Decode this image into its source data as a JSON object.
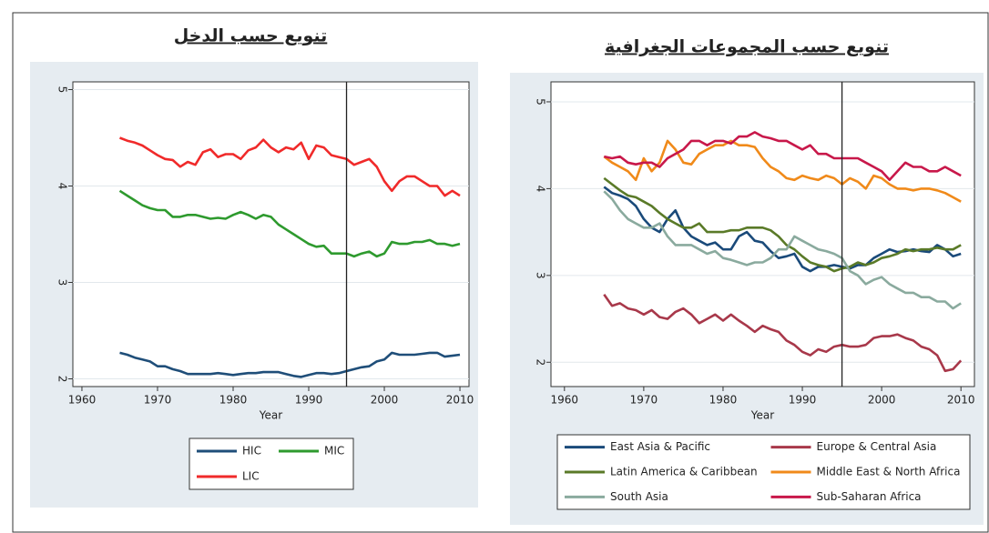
{
  "chart_data": [
    {
      "type": "line",
      "title": "تنويع حسب الدخل",
      "xlabel": "Year",
      "x": [
        1965,
        1966,
        1967,
        1968,
        1969,
        1970,
        1971,
        1972,
        1973,
        1974,
        1975,
        1976,
        1977,
        1978,
        1979,
        1980,
        1981,
        1982,
        1983,
        1984,
        1985,
        1986,
        1987,
        1988,
        1989,
        1990,
        1991,
        1992,
        1993,
        1994,
        1995,
        1996,
        1997,
        1998,
        1999,
        2000,
        2001,
        2002,
        2003,
        2004,
        2005,
        2006,
        2007,
        2008,
        2009,
        2010
      ],
      "xlim": [
        1958.8,
        2011.2
      ],
      "xticks": [
        1960,
        1970,
        1980,
        1990,
        2000,
        2010
      ],
      "ylim": [
        1.92,
        5.08
      ],
      "yticks": [
        2,
        3,
        4,
        5
      ],
      "grid": true,
      "vline": 1995,
      "legend": "bottom",
      "legend_columns": 2,
      "series": [
        {
          "name": "HIC",
          "color": "#1f4e79",
          "values": [
            2.27,
            2.25,
            2.22,
            2.2,
            2.18,
            2.13,
            2.13,
            2.1,
            2.08,
            2.05,
            2.05,
            2.05,
            2.05,
            2.06,
            2.05,
            2.04,
            2.05,
            2.06,
            2.06,
            2.07,
            2.07,
            2.07,
            2.05,
            2.03,
            2.02,
            2.04,
            2.06,
            2.06,
            2.05,
            2.06,
            2.08,
            2.1,
            2.12,
            2.13,
            2.18,
            2.2,
            2.27,
            2.25,
            2.25,
            2.25,
            2.26,
            2.27,
            2.27,
            2.23,
            2.24,
            2.25
          ]
        },
        {
          "name": "MIC",
          "color": "#2e9a2e",
          "values": [
            3.95,
            3.9,
            3.85,
            3.8,
            3.77,
            3.75,
            3.75,
            3.68,
            3.68,
            3.7,
            3.7,
            3.68,
            3.66,
            3.67,
            3.66,
            3.7,
            3.73,
            3.7,
            3.66,
            3.7,
            3.68,
            3.6,
            3.55,
            3.5,
            3.45,
            3.4,
            3.37,
            3.38,
            3.3,
            3.3,
            3.3,
            3.27,
            3.3,
            3.32,
            3.27,
            3.3,
            3.42,
            3.4,
            3.4,
            3.42,
            3.42,
            3.44,
            3.4,
            3.4,
            3.38,
            3.4
          ]
        },
        {
          "name": "LIC",
          "color": "#f02a2a",
          "values": [
            4.5,
            4.47,
            4.45,
            4.42,
            4.37,
            4.32,
            4.28,
            4.27,
            4.2,
            4.25,
            4.22,
            4.35,
            4.38,
            4.3,
            4.33,
            4.33,
            4.28,
            4.37,
            4.4,
            4.48,
            4.4,
            4.35,
            4.4,
            4.38,
            4.45,
            4.28,
            4.42,
            4.4,
            4.32,
            4.3,
            4.28,
            4.22,
            4.25,
            4.28,
            4.2,
            4.05,
            3.95,
            4.05,
            4.1,
            4.1,
            4.05,
            4.0,
            4.0,
            3.9,
            3.95,
            3.9
          ]
        }
      ]
    },
    {
      "type": "line",
      "title": "تنويع حسب المجموعات الجغرافية",
      "xlabel": "Year",
      "x": [
        1965,
        1966,
        1967,
        1968,
        1969,
        1970,
        1971,
        1972,
        1973,
        1974,
        1975,
        1976,
        1977,
        1978,
        1979,
        1980,
        1981,
        1982,
        1983,
        1984,
        1985,
        1986,
        1987,
        1988,
        1989,
        1990,
        1991,
        1992,
        1993,
        1994,
        1995,
        1996,
        1997,
        1998,
        1999,
        2000,
        2001,
        2002,
        2003,
        2004,
        2005,
        2006,
        2007,
        2008,
        2009,
        2010
      ],
      "xlim": [
        1958.3,
        2011.7
      ],
      "xticks": [
        1960,
        1970,
        1980,
        1990,
        2000,
        2010
      ],
      "ylim": [
        1.72,
        5.23
      ],
      "yticks": [
        2,
        3,
        4,
        5
      ],
      "grid": true,
      "vline": 1995,
      "legend": "bottom",
      "legend_columns": 2,
      "series": [
        {
          "name": "East Asia & Pacific",
          "color": "#1a4a7a",
          "values": [
            4.02,
            3.95,
            3.92,
            3.88,
            3.8,
            3.65,
            3.55,
            3.5,
            3.65,
            3.75,
            3.55,
            3.45,
            3.4,
            3.35,
            3.38,
            3.3,
            3.3,
            3.45,
            3.5,
            3.4,
            3.38,
            3.28,
            3.2,
            3.22,
            3.25,
            3.1,
            3.05,
            3.1,
            3.1,
            3.12,
            3.1,
            3.08,
            3.12,
            3.12,
            3.2,
            3.25,
            3.3,
            3.27,
            3.28,
            3.3,
            3.28,
            3.27,
            3.35,
            3.3,
            3.22,
            3.25
          ]
        },
        {
          "name": "Europe & Central Asia",
          "color": "#a8384a",
          "values": [
            2.78,
            2.65,
            2.68,
            2.62,
            2.6,
            2.55,
            2.6,
            2.52,
            2.5,
            2.58,
            2.62,
            2.55,
            2.45,
            2.5,
            2.55,
            2.48,
            2.55,
            2.48,
            2.42,
            2.35,
            2.42,
            2.38,
            2.35,
            2.25,
            2.2,
            2.12,
            2.08,
            2.15,
            2.12,
            2.18,
            2.2,
            2.18,
            2.18,
            2.2,
            2.28,
            2.3,
            2.3,
            2.32,
            2.28,
            2.25,
            2.18,
            2.15,
            2.08,
            1.9,
            1.92,
            2.02
          ]
        },
        {
          "name": "Latin America & Caribbean",
          "color": "#5a7a28",
          "values": [
            4.12,
            4.05,
            3.98,
            3.92,
            3.9,
            3.85,
            3.8,
            3.72,
            3.65,
            3.6,
            3.55,
            3.55,
            3.6,
            3.5,
            3.5,
            3.5,
            3.52,
            3.52,
            3.55,
            3.55,
            3.55,
            3.52,
            3.45,
            3.35,
            3.3,
            3.22,
            3.15,
            3.12,
            3.1,
            3.05,
            3.08,
            3.1,
            3.15,
            3.12,
            3.15,
            3.2,
            3.22,
            3.25,
            3.3,
            3.28,
            3.3,
            3.3,
            3.32,
            3.3,
            3.3,
            3.35
          ]
        },
        {
          "name": "Middle East & North Africa",
          "color": "#f08a1a",
          "values": [
            4.37,
            4.3,
            4.25,
            4.2,
            4.1,
            4.35,
            4.2,
            4.3,
            4.55,
            4.45,
            4.3,
            4.28,
            4.4,
            4.45,
            4.5,
            4.5,
            4.55,
            4.5,
            4.5,
            4.48,
            4.35,
            4.25,
            4.2,
            4.12,
            4.1,
            4.15,
            4.12,
            4.1,
            4.15,
            4.12,
            4.05,
            4.12,
            4.08,
            4.0,
            4.15,
            4.12,
            4.05,
            4.0,
            4.0,
            3.98,
            4.0,
            4.0,
            3.98,
            3.95,
            3.9,
            3.85
          ]
        },
        {
          "name": "South Asia",
          "color": "#8aaa9e",
          "values": [
            3.97,
            3.88,
            3.75,
            3.65,
            3.6,
            3.55,
            3.55,
            3.6,
            3.45,
            3.35,
            3.35,
            3.35,
            3.3,
            3.25,
            3.28,
            3.2,
            3.18,
            3.15,
            3.12,
            3.15,
            3.15,
            3.2,
            3.3,
            3.3,
            3.45,
            3.4,
            3.35,
            3.3,
            3.28,
            3.25,
            3.2,
            3.05,
            3.0,
            2.9,
            2.95,
            2.98,
            2.9,
            2.85,
            2.8,
            2.8,
            2.75,
            2.75,
            2.7,
            2.7,
            2.62,
            2.68
          ]
        },
        {
          "name": "Sub-Saharan Africa",
          "color": "#c8184a",
          "values": [
            4.37,
            4.35,
            4.37,
            4.3,
            4.28,
            4.3,
            4.3,
            4.25,
            4.35,
            4.4,
            4.45,
            4.55,
            4.55,
            4.5,
            4.55,
            4.55,
            4.52,
            4.6,
            4.6,
            4.65,
            4.6,
            4.58,
            4.55,
            4.55,
            4.5,
            4.45,
            4.5,
            4.4,
            4.4,
            4.35,
            4.35,
            4.35,
            4.35,
            4.3,
            4.25,
            4.2,
            4.1,
            4.2,
            4.3,
            4.25,
            4.25,
            4.2,
            4.2,
            4.25,
            4.2,
            4.15
          ]
        }
      ]
    }
  ]
}
